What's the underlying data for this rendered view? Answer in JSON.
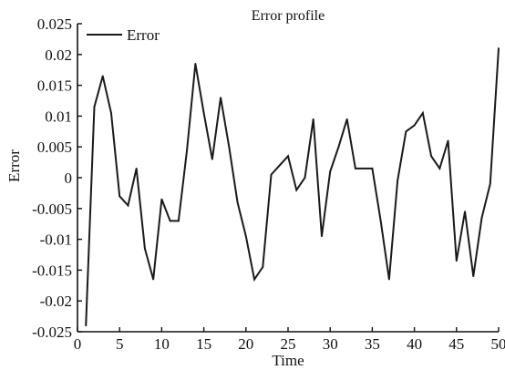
{
  "chart_data": {
    "type": "line",
    "title": "Error profile",
    "xlabel": "Time",
    "ylabel": "Error",
    "xlim": [
      0,
      50
    ],
    "ylim": [
      -0.025,
      0.025
    ],
    "xticks": [
      "0",
      "5",
      "10",
      "15",
      "20",
      "25",
      "30",
      "35",
      "40",
      "45",
      "50"
    ],
    "yticks": [
      "0.025",
      "0.02",
      "0.015",
      "0.01",
      "0.005",
      "0",
      "-0.005",
      "-0.01",
      "-0.015",
      "-0.02",
      "-0.025"
    ],
    "grid": false,
    "legend_position": "top-left",
    "line_color": "#1a1a1a",
    "series": [
      {
        "name": "Error",
        "x": [
          1,
          2,
          3,
          4,
          5,
          6,
          7,
          8,
          9,
          10,
          11,
          12,
          13,
          14,
          15,
          16,
          17,
          18,
          19,
          20,
          21,
          22,
          23,
          24,
          25,
          26,
          27,
          28,
          29,
          30,
          31,
          32,
          33,
          34,
          35,
          36,
          37,
          38,
          39,
          40,
          41,
          42,
          43,
          44,
          45,
          46,
          47,
          48,
          49,
          50
        ],
        "values": [
          -0.024,
          0.0115,
          0.0165,
          0.0105,
          -0.003,
          -0.0045,
          0.0015,
          -0.0115,
          -0.0165,
          -0.0035,
          -0.007,
          -0.007,
          0.0045,
          0.0185,
          0.0105,
          0.003,
          0.013,
          0.005,
          -0.004,
          -0.0095,
          -0.0165,
          -0.0145,
          0.0005,
          0.002,
          0.0035,
          -0.002,
          0.0,
          0.0095,
          -0.0095,
          0.001,
          0.005,
          0.0095,
          0.0015,
          0.0015,
          0.0015,
          -0.007,
          -0.0165,
          -0.0005,
          0.0075,
          0.0085,
          0.0105,
          0.0035,
          0.0015,
          0.006,
          -0.0135,
          -0.0055,
          -0.016,
          -0.0065,
          -0.001,
          0.021
        ]
      }
    ]
  }
}
